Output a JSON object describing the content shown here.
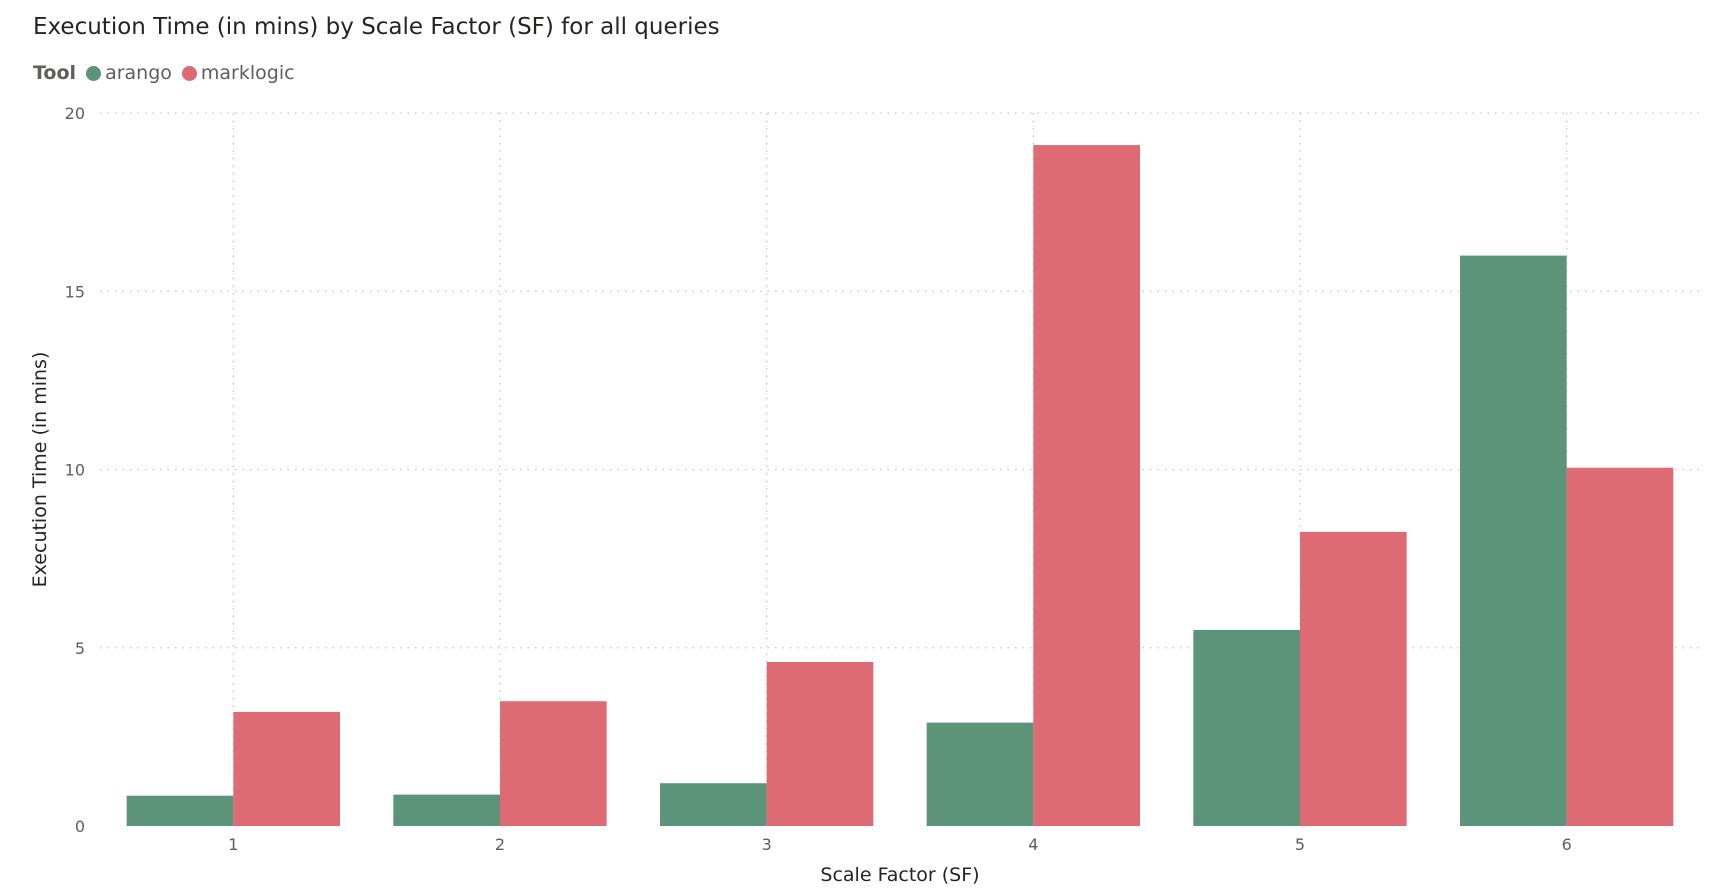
{
  "title": "Execution Time (in mins) by Scale Factor (SF) for all queries",
  "legend": {
    "title": "Tool",
    "placement": "top-left"
  },
  "colors": {
    "arango": "#5c9479",
    "marklogic": "#de6a73",
    "grid": "#c8c6c4",
    "text": "#252423",
    "muted": "#605e5c"
  },
  "chart_data": {
    "type": "bar",
    "title": "Execution Time (in mins) by Scale Factor (SF) for all queries",
    "xlabel": "Scale Factor (SF)",
    "ylabel": "Execution Time (in mins)",
    "categories": [
      "1",
      "2",
      "3",
      "4",
      "5",
      "6"
    ],
    "series": [
      {
        "name": "arango",
        "values": [
          0.85,
          0.88,
          1.2,
          2.9,
          5.5,
          16.0
        ]
      },
      {
        "name": "marklogic",
        "values": [
          3.2,
          3.5,
          4.6,
          19.1,
          8.25,
          10.05
        ]
      }
    ],
    "ylim": [
      0,
      20
    ],
    "yticks": [
      0,
      5,
      10,
      15,
      20
    ],
    "grid": true,
    "legend_position": "top-left"
  }
}
